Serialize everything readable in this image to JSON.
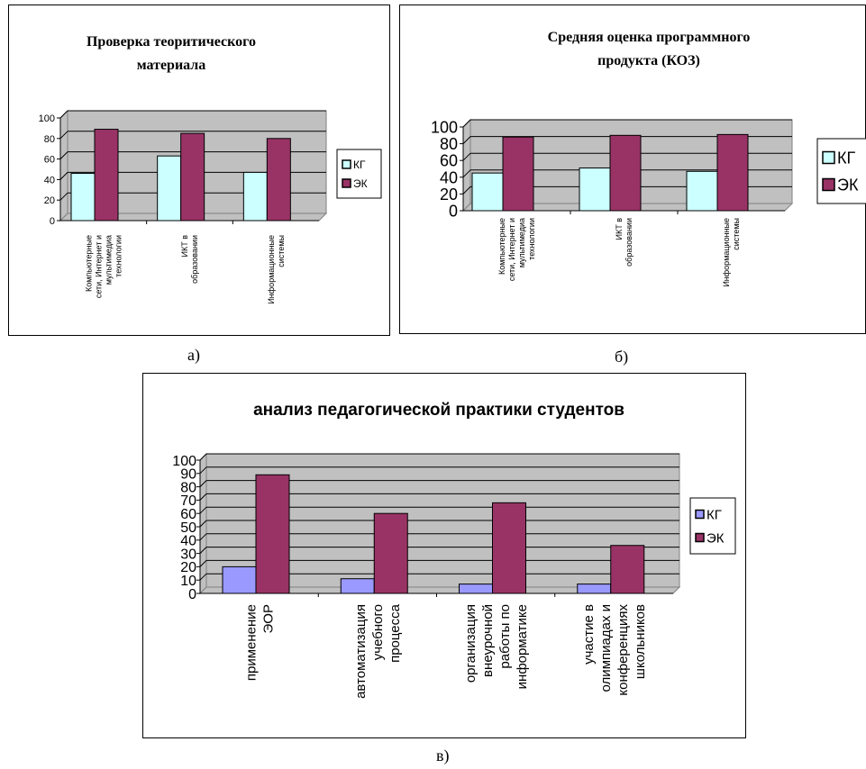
{
  "captions": {
    "a": "а)",
    "b": "б)",
    "c": "в)"
  },
  "colors": {
    "kg_cyan": "#ccffff",
    "ek": "#993366",
    "kg_blue": "#9999ff",
    "plot_bg": "#c0c0c0"
  },
  "chart_data": [
    {
      "type": "bar",
      "title": [
        "Проверка теоритического",
        "материала"
      ],
      "categories": [
        [
          "Компьютерные",
          "сети, Интернет и",
          "мультимедиа",
          "технологии"
        ],
        [
          "ИКТ в",
          "образовании"
        ],
        [
          "Информационные",
          "системы"
        ]
      ],
      "series": [
        {
          "name": "КГ",
          "values": [
            46,
            63,
            47
          ],
          "color": "#ccffff"
        },
        {
          "name": "ЭК",
          "values": [
            89,
            85,
            80
          ],
          "color": "#993366"
        }
      ],
      "ylim": [
        0,
        100
      ],
      "yticks": [
        0,
        20,
        40,
        60,
        80,
        100
      ],
      "legend": "right",
      "grid": true
    },
    {
      "type": "bar",
      "title": [
        "Средняя оценка программного",
        "продукта (КОЗ)"
      ],
      "categories": [
        [
          "Компьютерные",
          "сети, Интернет и",
          "мультимедиа",
          "технологии"
        ],
        [
          "ИКТ в",
          "образовании"
        ],
        [
          "Информационные",
          "системы"
        ]
      ],
      "series": [
        {
          "name": "КГ",
          "values": [
            45,
            51,
            47
          ],
          "color": "#ccffff"
        },
        {
          "name": "ЭК",
          "values": [
            88,
            90,
            91
          ],
          "color": "#993366"
        }
      ],
      "ylim": [
        0,
        100
      ],
      "yticks": [
        0,
        20,
        40,
        60,
        80,
        100
      ],
      "legend": "right",
      "grid": true
    },
    {
      "type": "bar",
      "title": [
        "анализ педагогической практики студентов"
      ],
      "categories": [
        [
          "применение",
          "ЭОР"
        ],
        [
          "автоматизация",
          "учебного",
          "процесса"
        ],
        [
          "организация",
          "внеурочной",
          "работы по",
          "информатике"
        ],
        [
          "участие в",
          "олимпиадах и",
          "конференциях",
          "школьников"
        ]
      ],
      "series": [
        {
          "name": "КГ",
          "values": [
            20,
            11,
            7,
            7
          ],
          "color": "#9999ff"
        },
        {
          "name": "ЭК",
          "values": [
            89,
            60,
            68,
            36
          ],
          "color": "#993366"
        }
      ],
      "ylim": [
        0,
        100
      ],
      "yticks": [
        0,
        10,
        20,
        30,
        40,
        50,
        60,
        70,
        80,
        90,
        100
      ],
      "legend": "right",
      "grid": true
    }
  ]
}
